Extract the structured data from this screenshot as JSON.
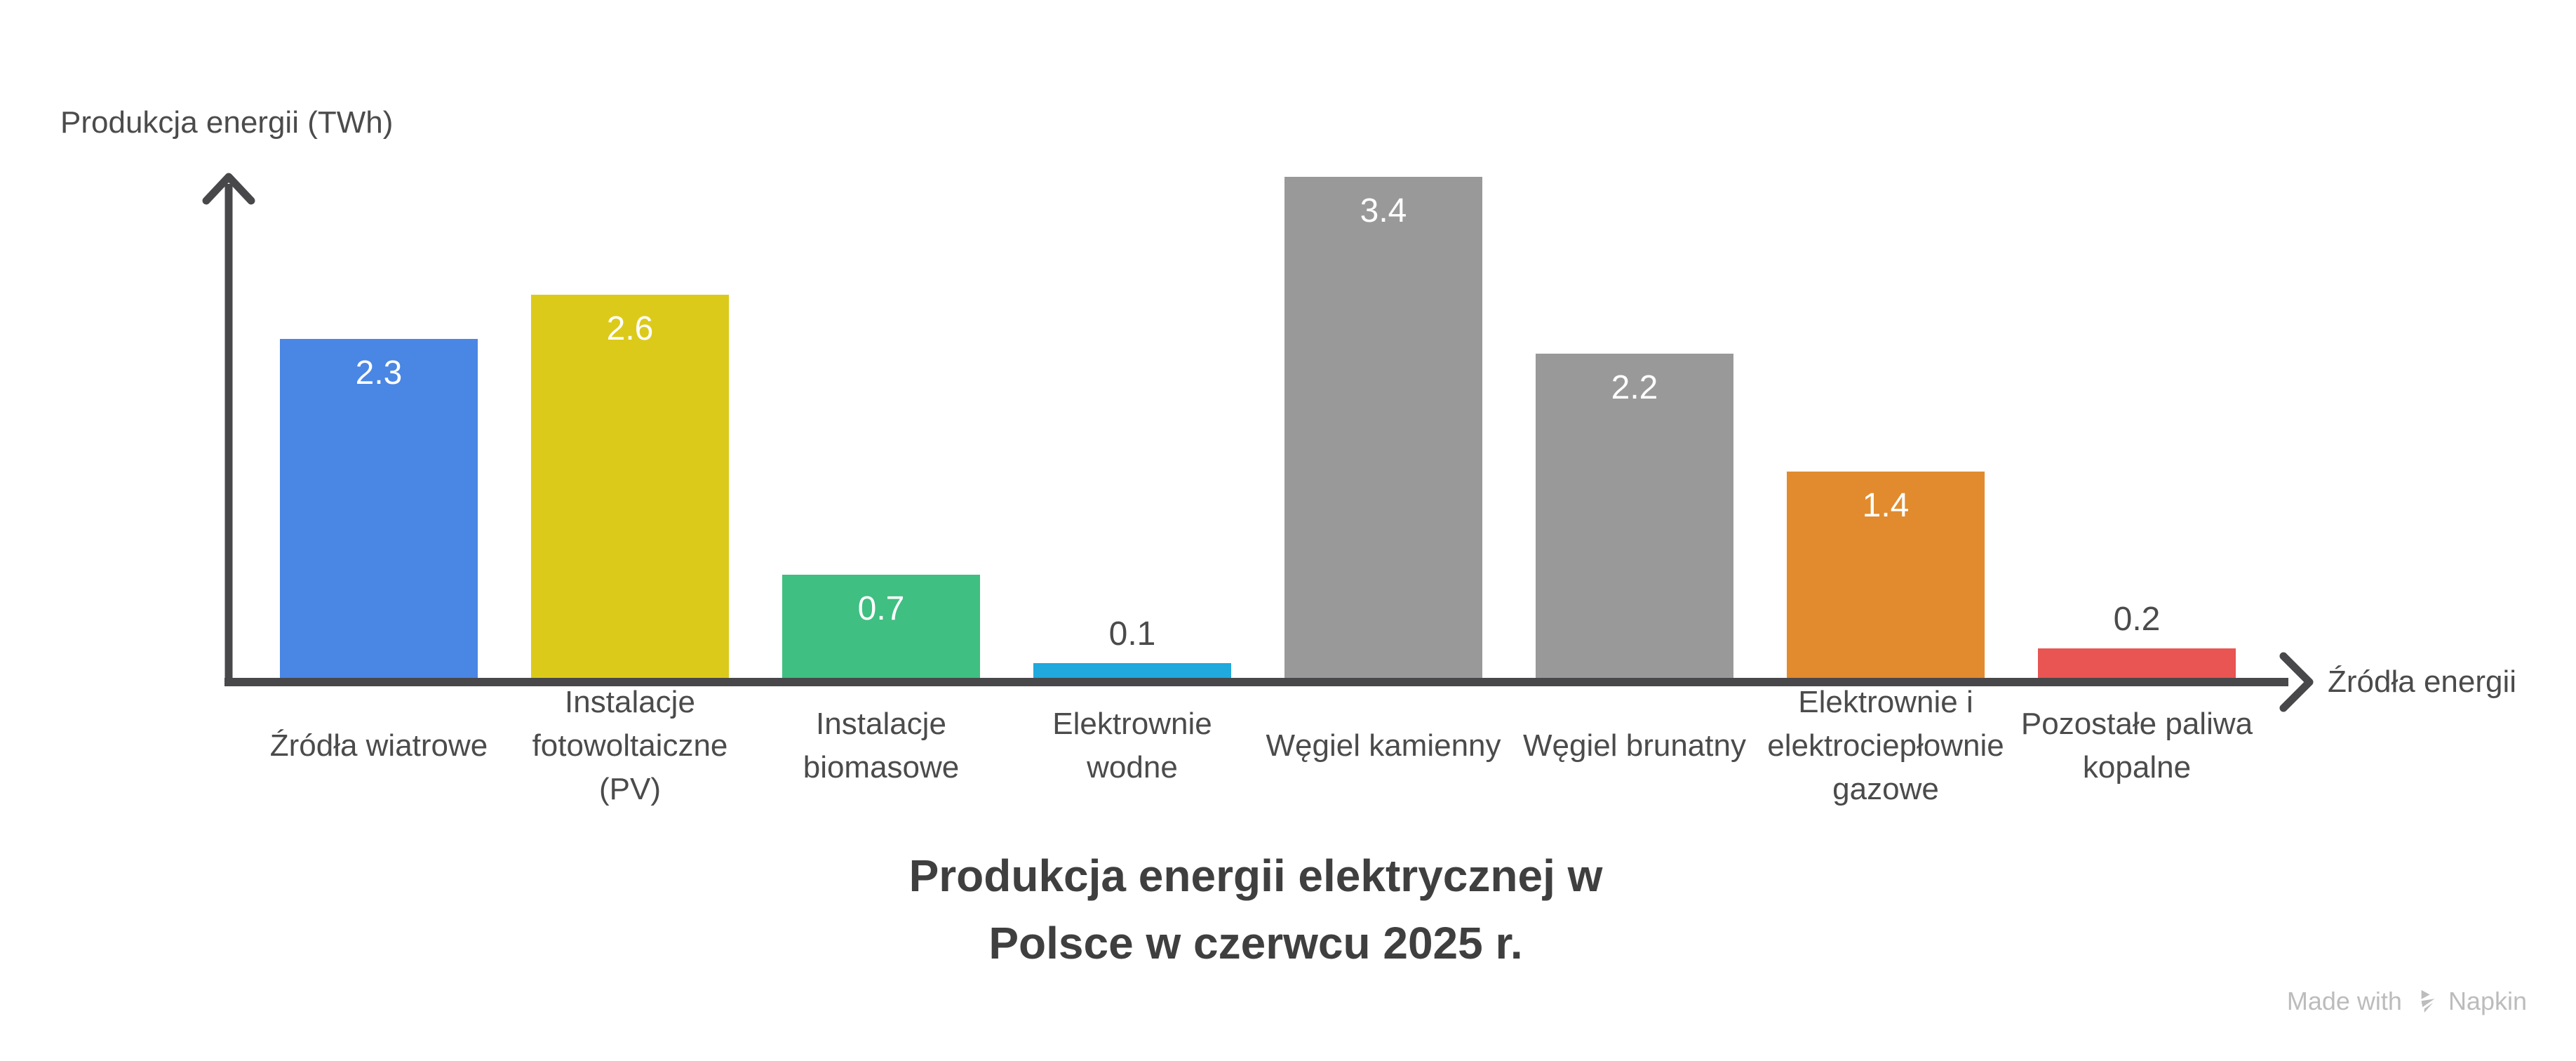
{
  "chart_data": {
    "type": "bar",
    "title": "Produkcja energii elektrycznej w Polsce w czerwcu 2025 r.",
    "title_lines": [
      "Produkcja energii elektrycznej w",
      "Polsce w czerwcu 2025 r."
    ],
    "ylabel": "Produkcja energii (TWh)",
    "xlabel": "Źródła energii",
    "categories": [
      "Źródła wiatrowe",
      "Instalacje fotowoltaiczne (PV)",
      "Instalacje biomasowe",
      "Elektrownie wodne",
      "Węgiel kamienny",
      "Węgiel brunatny",
      "Elektrownie i elektrociepłownie gazowe",
      "Pozostałe paliwa kopalne"
    ],
    "label_lines": [
      [
        "Źródła wiatrowe"
      ],
      [
        "Instalacje",
        "fotowoltaiczne",
        "(PV)"
      ],
      [
        "Instalacje",
        "biomasowe"
      ],
      [
        "Elektrownie",
        "wodne"
      ],
      [
        "Węgiel kamienny"
      ],
      [
        "Węgiel brunatny"
      ],
      [
        "Elektrownie i",
        "elektrociepłownie",
        "gazowe"
      ],
      [
        "Pozostałe paliwa",
        "kopalne"
      ]
    ],
    "values": [
      2.3,
      2.6,
      0.7,
      0.1,
      3.4,
      2.2,
      1.4,
      0.2
    ],
    "value_labels": [
      "2.3",
      "2.6",
      "0.7",
      "0.1",
      "3.4",
      "2.2",
      "1.4",
      "0.2"
    ],
    "value_inside": [
      true,
      true,
      true,
      false,
      true,
      true,
      true,
      false
    ],
    "colors": [
      "#4a86e3",
      "#dcca1b",
      "#3fbf81",
      "#1fa9dd",
      "#999999",
      "#999999",
      "#e18b2e",
      "#e85552"
    ],
    "unit": "TWh",
    "ylim": [
      0,
      3.6
    ],
    "grid": false,
    "legend": "none"
  },
  "watermark": {
    "prefix": "Made with",
    "brand": "Napkin"
  },
  "theme": {
    "background": "#ffffff",
    "axis_color": "#48484b",
    "label_color": "#4b4b4b",
    "title_color": "#3f3f3f",
    "value_in_color": "#ffffff",
    "value_out_color": "#4b4b4b",
    "watermark_color": "#bcbcbc"
  }
}
